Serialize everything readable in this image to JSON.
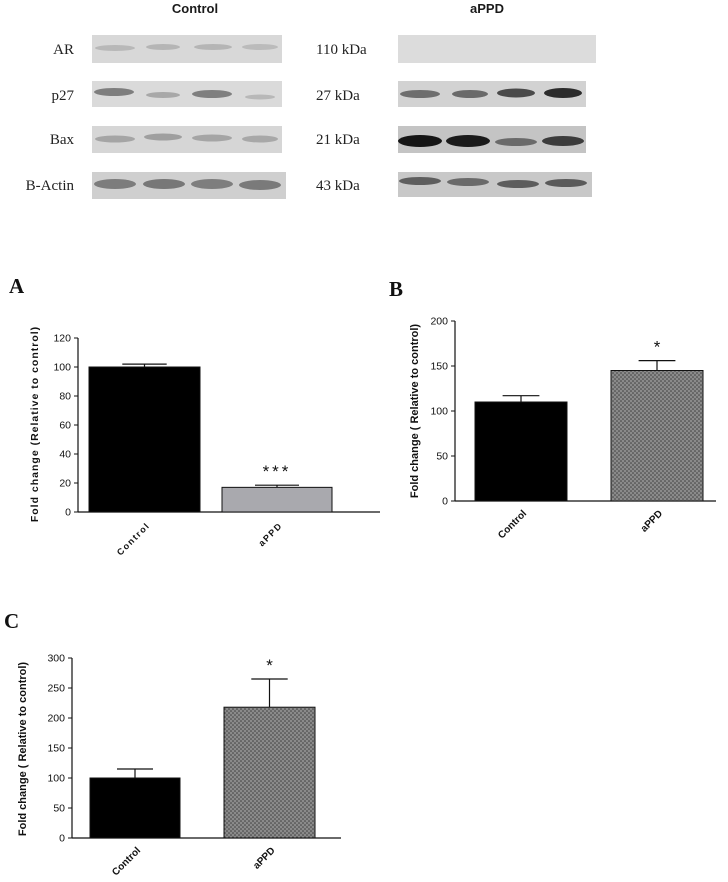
{
  "blot": {
    "group_headers": [
      "Control",
      "aPPD"
    ],
    "rows": [
      {
        "protein": "AR",
        "mw": "110 kDa"
      },
      {
        "protein": "p27",
        "mw": "27 kDa"
      },
      {
        "protein": "Bax",
        "mw": "21 kDa"
      },
      {
        "protein": "B-Actin",
        "mw": "43 kDa"
      }
    ]
  },
  "panels": [
    "A",
    "B",
    "C"
  ],
  "chart_data": [
    {
      "panel": "A",
      "type": "bar",
      "categories": [
        "Control",
        "aPPD"
      ],
      "values": [
        100,
        17
      ],
      "errors": [
        2,
        1.5
      ],
      "significance": [
        "",
        "***"
      ],
      "bar_colors": [
        "#000000",
        "#a9a9ae"
      ],
      "ylabel": "Fold change (Relative to control)",
      "ylim": [
        0,
        120
      ],
      "yticks": [
        0,
        20,
        40,
        60,
        80,
        100,
        120
      ]
    },
    {
      "panel": "B",
      "type": "bar",
      "categories": [
        "Control",
        "aPPD"
      ],
      "values": [
        110,
        145
      ],
      "errors": [
        7,
        11
      ],
      "significance": [
        "",
        "*"
      ],
      "bar_colors": [
        "#000000",
        "#7a7a7a"
      ],
      "ylabel": "Fold change ( Relative to control)",
      "ylim": [
        0,
        200
      ],
      "yticks": [
        0,
        50,
        100,
        150,
        200
      ]
    },
    {
      "panel": "C",
      "type": "bar",
      "categories": [
        "Control",
        "aPPD"
      ],
      "values": [
        100,
        218
      ],
      "errors": [
        15,
        47
      ],
      "significance": [
        "",
        "*"
      ],
      "bar_colors": [
        "#000000",
        "#7a7a7a"
      ],
      "ylabel": "Fold change ( Relative to control)",
      "ylim": [
        0,
        300
      ],
      "yticks": [
        0,
        50,
        100,
        150,
        200,
        250,
        300
      ]
    }
  ]
}
